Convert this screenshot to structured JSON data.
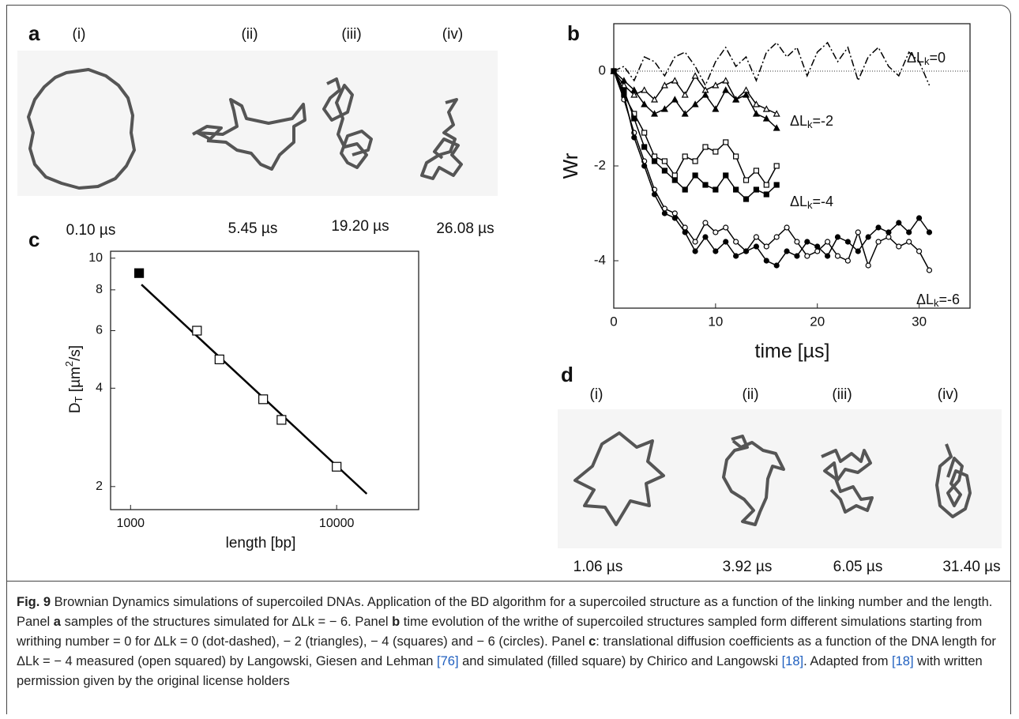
{
  "panels": {
    "a": {
      "letter": "a",
      "labels": [
        "(i)",
        "(ii)",
        "(iii)",
        "(iv)"
      ],
      "times": [
        "0.10 µs",
        "5.45 µs",
        "19.20 µs",
        "26.08 µs"
      ]
    },
    "d": {
      "letter": "d",
      "labels": [
        "(i)",
        "(ii)",
        "(iii)",
        "(iv)"
      ],
      "times": [
        "1.06 µs",
        "3.92 µs",
        "6.05 µs",
        "31.40 µs"
      ]
    }
  },
  "chart_data": [
    {
      "type": "line",
      "panel_label": "b",
      "xlabel": "time [µs]",
      "ylabel": "Wr",
      "xlim": [
        0,
        35
      ],
      "ylim": [
        -5,
        1
      ],
      "xticks": [
        0,
        10,
        20,
        30
      ],
      "yticks": [
        0,
        -2,
        -4
      ],
      "reference_line": 0,
      "annotations": [
        [
          "ΔL",
          "k",
          "=0"
        ],
        [
          "ΔL",
          "k",
          "=-2"
        ],
        [
          "ΔL",
          "k",
          "=-4"
        ],
        [
          "ΔL",
          "k",
          "=-6"
        ]
      ],
      "series": [
        {
          "color": "#000",
          "marker": "none",
          "dash": "dashdot",
          "x": [
            0,
            1,
            2,
            3,
            4,
            5,
            6,
            7,
            8,
            9,
            10,
            11,
            12,
            13,
            14,
            15,
            16,
            17,
            18,
            19,
            20,
            21,
            22,
            23,
            24,
            25,
            26,
            27,
            28,
            29,
            30,
            31
          ],
          "values": [
            0,
            0.1,
            -0.2,
            0.3,
            0.2,
            -0.1,
            0.3,
            0.4,
            0.1,
            -0.3,
            0.2,
            0.5,
            0.1,
            0.3,
            -0.2,
            0.4,
            0.6,
            0.3,
            0.5,
            -0.1,
            0.4,
            0.6,
            0.2,
            0.5,
            -0.2,
            0.3,
            0.5,
            0.1,
            -0.1,
            0.4,
            0.2,
            -0.3
          ]
        },
        {
          "color": "#000",
          "marker": "triangle",
          "filled": false,
          "x": [
            0,
            1,
            2,
            3,
            4,
            5,
            6,
            7,
            8,
            9,
            10,
            11,
            12,
            13,
            14,
            15,
            16
          ],
          "values": [
            0,
            -0.3,
            -0.5,
            -0.4,
            -0.6,
            -0.3,
            -0.2,
            -0.5,
            -0.1,
            -0.4,
            -0.3,
            -0.2,
            -0.6,
            -0.4,
            -0.7,
            -0.8,
            -0.9
          ]
        },
        {
          "color": "#000",
          "marker": "triangle",
          "filled": true,
          "x": [
            0,
            1,
            2,
            3,
            4,
            5,
            6,
            7,
            8,
            9,
            10,
            11,
            12,
            13,
            14,
            15,
            16
          ],
          "values": [
            0,
            -0.2,
            -0.4,
            -0.7,
            -0.9,
            -0.8,
            -0.6,
            -0.9,
            -0.7,
            -0.5,
            -0.8,
            -0.4,
            -0.6,
            -0.5,
            -0.9,
            -1.0,
            -1.2
          ]
        },
        {
          "color": "#000",
          "marker": "square",
          "filled": false,
          "x": [
            0,
            1,
            2,
            3,
            4,
            5,
            6,
            7,
            8,
            9,
            10,
            11,
            12,
            13,
            14,
            15,
            16
          ],
          "values": [
            0,
            -0.5,
            -0.9,
            -1.3,
            -1.8,
            -1.9,
            -2.2,
            -1.8,
            -1.9,
            -1.6,
            -1.7,
            -1.5,
            -1.8,
            -2.3,
            -2.1,
            -2.4,
            -2.0
          ]
        },
        {
          "color": "#000",
          "marker": "square",
          "filled": true,
          "x": [
            0,
            1,
            2,
            3,
            4,
            5,
            6,
            7,
            8,
            9,
            10,
            11,
            12,
            13,
            14,
            15,
            16
          ],
          "values": [
            0,
            -0.4,
            -1.0,
            -1.6,
            -1.9,
            -2.1,
            -2.3,
            -2.5,
            -2.2,
            -2.4,
            -2.5,
            -2.2,
            -2.5,
            -2.7,
            -2.5,
            -2.6,
            -2.4
          ]
        },
        {
          "color": "#000",
          "marker": "circle",
          "filled": false,
          "x": [
            0,
            1,
            2,
            3,
            4,
            5,
            6,
            7,
            8,
            9,
            10,
            11,
            12,
            13,
            14,
            15,
            16,
            17,
            18,
            19,
            20,
            21,
            22,
            23,
            24,
            25,
            26,
            27,
            28,
            29,
            30,
            31
          ],
          "values": [
            0,
            -0.6,
            -1.3,
            -1.9,
            -2.5,
            -2.9,
            -3.0,
            -3.3,
            -3.6,
            -3.2,
            -3.4,
            -3.3,
            -3.6,
            -3.8,
            -3.5,
            -3.7,
            -3.5,
            -3.3,
            -3.6,
            -3.9,
            -3.8,
            -3.6,
            -3.9,
            -4.0,
            -3.4,
            -4.1,
            -3.6,
            -3.5,
            -3.7,
            -3.6,
            -3.8,
            -4.2
          ]
        },
        {
          "color": "#000",
          "marker": "circle",
          "filled": true,
          "x": [
            0,
            1,
            2,
            3,
            4,
            5,
            6,
            7,
            8,
            9,
            10,
            11,
            12,
            13,
            14,
            15,
            16,
            17,
            18,
            19,
            20,
            21,
            22,
            23,
            24,
            25,
            26,
            27,
            28,
            29,
            30,
            31
          ],
          "values": [
            0,
            -0.5,
            -1.4,
            -2.0,
            -2.6,
            -3.0,
            -3.1,
            -3.4,
            -3.8,
            -3.5,
            -3.8,
            -3.6,
            -3.9,
            -3.8,
            -3.7,
            -4.0,
            -4.1,
            -3.8,
            -3.9,
            -3.6,
            -3.7,
            -3.9,
            -3.5,
            -3.6,
            -3.8,
            -3.5,
            -3.3,
            -3.4,
            -3.2,
            -3.4,
            -3.1,
            -3.4
          ]
        }
      ]
    },
    {
      "type": "scatter",
      "panel_label": "c",
      "xlabel": "length [bp]",
      "ylabel": [
        "D",
        "T",
        " [µm",
        "2",
        "/s]"
      ],
      "xscale": "log",
      "yscale": "log",
      "xlim": [
        800,
        25000
      ],
      "ylim": [
        1.7,
        10.5
      ],
      "xticks": [
        1000,
        10000
      ],
      "yticks": [
        2,
        4,
        6,
        8,
        10
      ],
      "series": [
        {
          "color": "#000",
          "marker": "none",
          "line": true,
          "x": [
            1130,
            14000
          ],
          "values": [
            8.3,
            1.9
          ]
        },
        {
          "color": "#000",
          "marker": "square",
          "filled": true,
          "x": [
            1100
          ],
          "values": [
            9.0
          ]
        },
        {
          "color": "#000",
          "marker": "square",
          "filled": false,
          "x": [
            2100,
            2700,
            4400,
            5400,
            10000
          ],
          "values": [
            6.0,
            4.9,
            3.7,
            3.2,
            2.3
          ]
        }
      ]
    }
  ],
  "caption": [
    "Fig. 9",
    " Brownian Dynamics simulations of supercoiled DNAs. Application of the BD algorithm for a supercoiled structure as a function of the linking number and the length. Panel ",
    "a",
    " samples of the structures simulated for ΔLk = − 6. Panel ",
    "b",
    " time evolution of the writhe of supercoiled structures sampled form different simulations starting from writhing number = 0 for ΔLk = 0 (dot-dashed), − 2 (triangles), − 4 (squares) and − 6 (circles). Panel ",
    "c",
    ": translational diffusion coefficients as a function of the DNA length for ΔLk = − 4 measured (open squared) by Langowski, Giesen and Lehman ",
    "[76]",
    " and simulated (filled square) by Chirico and Langowski ",
    "[18]",
    ". Adapted from ",
    "[18]",
    " with written permission given by the original license holders"
  ]
}
